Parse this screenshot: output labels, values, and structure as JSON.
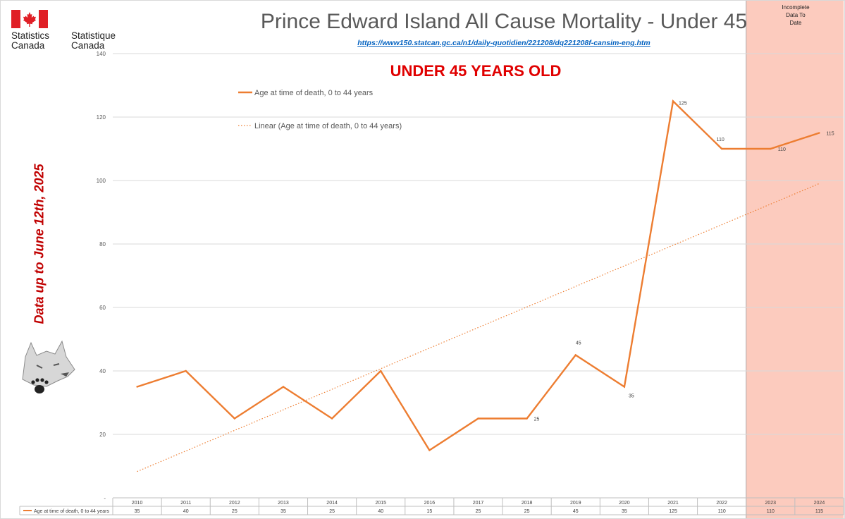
{
  "header": {
    "brand_en_line1": "Statistics",
    "brand_en_line2": "Canada",
    "brand_fr_line1": "Statistique",
    "brand_fr_line2": "Canada",
    "flag_icon": "canada-flag-icon",
    "title": "Prince Edward Island All Cause Mortality - Under 45",
    "source_url": "https://www150.statcan.gc.ca/n1/daily-quotidien/221208/dq221208f-cansim-eng.htm",
    "subtitle": "UNDER 45 YEARS OLD"
  },
  "shaded_region": {
    "label_lines": [
      "Incomplete",
      "Data To",
      "Date"
    ],
    "from_year": "2023",
    "to_year": "2024",
    "color": "#fccbbe"
  },
  "side_note": "Data up to June 12th, 2025",
  "wolf_icon": "wolf-head-paw-icon",
  "chart_data": {
    "type": "line",
    "categories": [
      "2010",
      "2011",
      "2012",
      "2013",
      "2014",
      "2015",
      "2016",
      "2017",
      "2018",
      "2019",
      "2020",
      "2021",
      "2022",
      "2023",
      "2024"
    ],
    "series": [
      {
        "name": "Age at time of death, 0 to 44 years",
        "values": [
          35,
          40,
          25,
          35,
          25,
          40,
          15,
          25,
          25,
          45,
          35,
          125,
          110,
          110,
          115
        ],
        "color": "#ed7d31"
      }
    ],
    "trendline": {
      "label": "Linear (Age at time of death, 0 to 44 years)",
      "type": "linear",
      "style": "dotted",
      "color": "#ed7d31"
    },
    "data_labels": [
      {
        "category": "2018",
        "value": "25"
      },
      {
        "category": "2019",
        "value": "45"
      },
      {
        "category": "2020",
        "value": "35"
      },
      {
        "category": "2021",
        "value": "125"
      },
      {
        "category": "2022",
        "value": "110"
      },
      {
        "category": "2023",
        "value": "110"
      },
      {
        "category": "2024",
        "value": "115"
      }
    ],
    "yticks": [
      {
        "value": 0,
        "label": "-"
      },
      {
        "value": 20,
        "label": "20"
      },
      {
        "value": 40,
        "label": "40"
      },
      {
        "value": 60,
        "label": "60"
      },
      {
        "value": 80,
        "label": "80"
      },
      {
        "value": 100,
        "label": "100"
      },
      {
        "value": 120,
        "label": "120"
      },
      {
        "value": 140,
        "label": "140"
      }
    ],
    "ylim": [
      0,
      140
    ],
    "grid": true,
    "legend_position": "top-left",
    "data_table": {
      "row_label": "Age at time of death, 0 to 44 years",
      "values": [
        "35",
        "40",
        "25",
        "35",
        "25",
        "40",
        "15",
        "25",
        "25",
        "45",
        "35",
        "125",
        "110",
        "110",
        "115"
      ]
    }
  }
}
